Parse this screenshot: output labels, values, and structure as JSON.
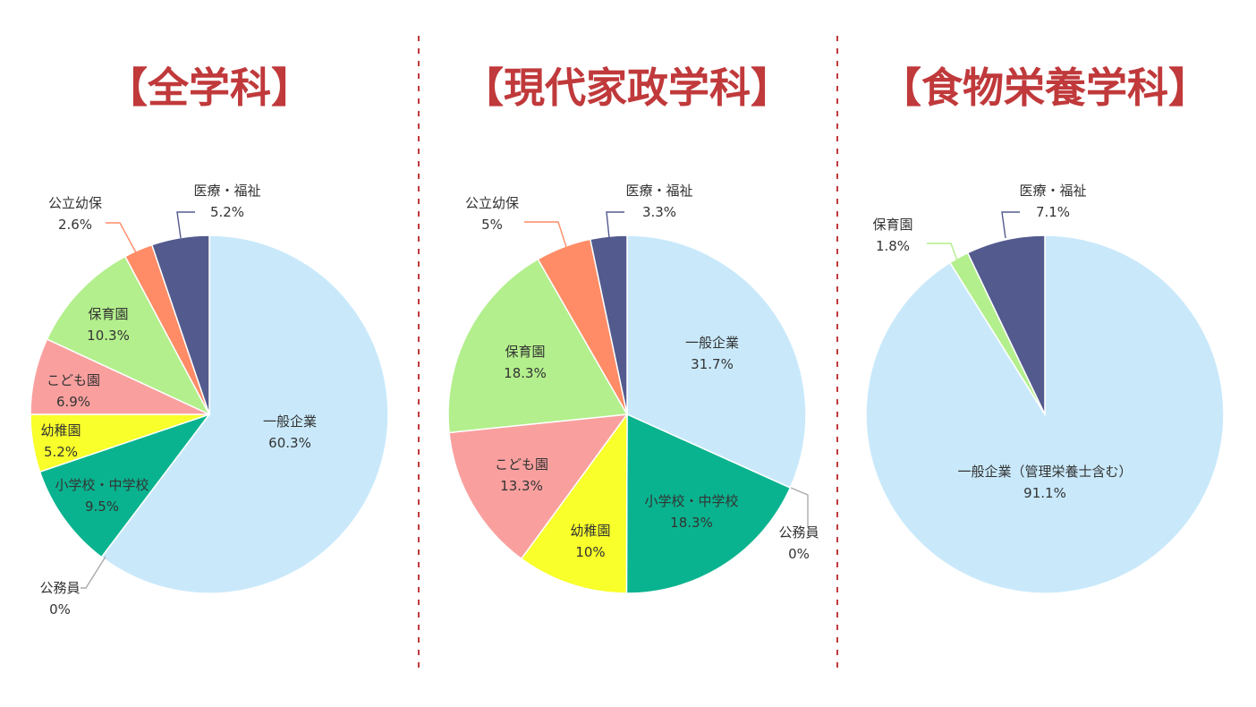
{
  "chart_data": [
    {
      "type": "pie",
      "title": "【全学科】",
      "colors": [
        "#c9e9fb",
        "#0ab38f",
        "#f8ff2a",
        "#f9a09f",
        "#b3ef8c",
        "#ff8c66",
        "#535a8e"
      ],
      "slices": [
        {
          "name": "一般企業",
          "value": 60.3,
          "value_label": "60.3%"
        },
        {
          "name": "公務員",
          "value": 0,
          "value_label": "0%"
        },
        {
          "name": "小学校・中学校",
          "value": 9.5,
          "value_label": "9.5%"
        },
        {
          "name": "幼稚園",
          "value": 5.2,
          "value_label": "5.2%"
        },
        {
          "name": "こども園",
          "value": 6.9,
          "value_label": "6.9%"
        },
        {
          "name": "保育園",
          "value": 10.3,
          "value_label": "10.3%"
        },
        {
          "name": "公立幼保",
          "value": 2.6,
          "value_label": "2.6%"
        },
        {
          "name": "医療・福祉",
          "value": 5.2,
          "value_label": "5.2%"
        }
      ]
    },
    {
      "type": "pie",
      "title": "【現代家政学科】",
      "colors": [
        "#c9e9fb",
        "#0ab38f",
        "#f8ff2a",
        "#f9a09f",
        "#b3ef8c",
        "#ff8c66",
        "#535a8e"
      ],
      "slices": [
        {
          "name": "一般企業",
          "value": 31.7,
          "value_label": "31.7%"
        },
        {
          "name": "公務員",
          "value": 0,
          "value_label": "0%"
        },
        {
          "name": "小学校・中学校",
          "value": 18.3,
          "value_label": "18.3%"
        },
        {
          "name": "幼稚園",
          "value": 10,
          "value_label": "10%"
        },
        {
          "name": "こども園",
          "value": 13.3,
          "value_label": "13.3%"
        },
        {
          "name": "保育園",
          "value": 18.3,
          "value_label": "18.3%"
        },
        {
          "name": "公立幼保",
          "value": 5,
          "value_label": "5%"
        },
        {
          "name": "医療・福祉",
          "value": 3.3,
          "value_label": "3.3%"
        }
      ]
    },
    {
      "type": "pie",
      "title": "【食物栄養学科】",
      "colors": [
        "#c9e9fb",
        "#b3ef8c",
        "#535a8e"
      ],
      "slices": [
        {
          "name": "一般企業（管理栄養士含む）",
          "value": 91.1,
          "value_label": "91.1%"
        },
        {
          "name": "保育園",
          "value": 1.8,
          "value_label": "1.8%"
        },
        {
          "name": "医療・福祉",
          "value": 7.1,
          "value_label": "7.1%"
        }
      ]
    }
  ]
}
